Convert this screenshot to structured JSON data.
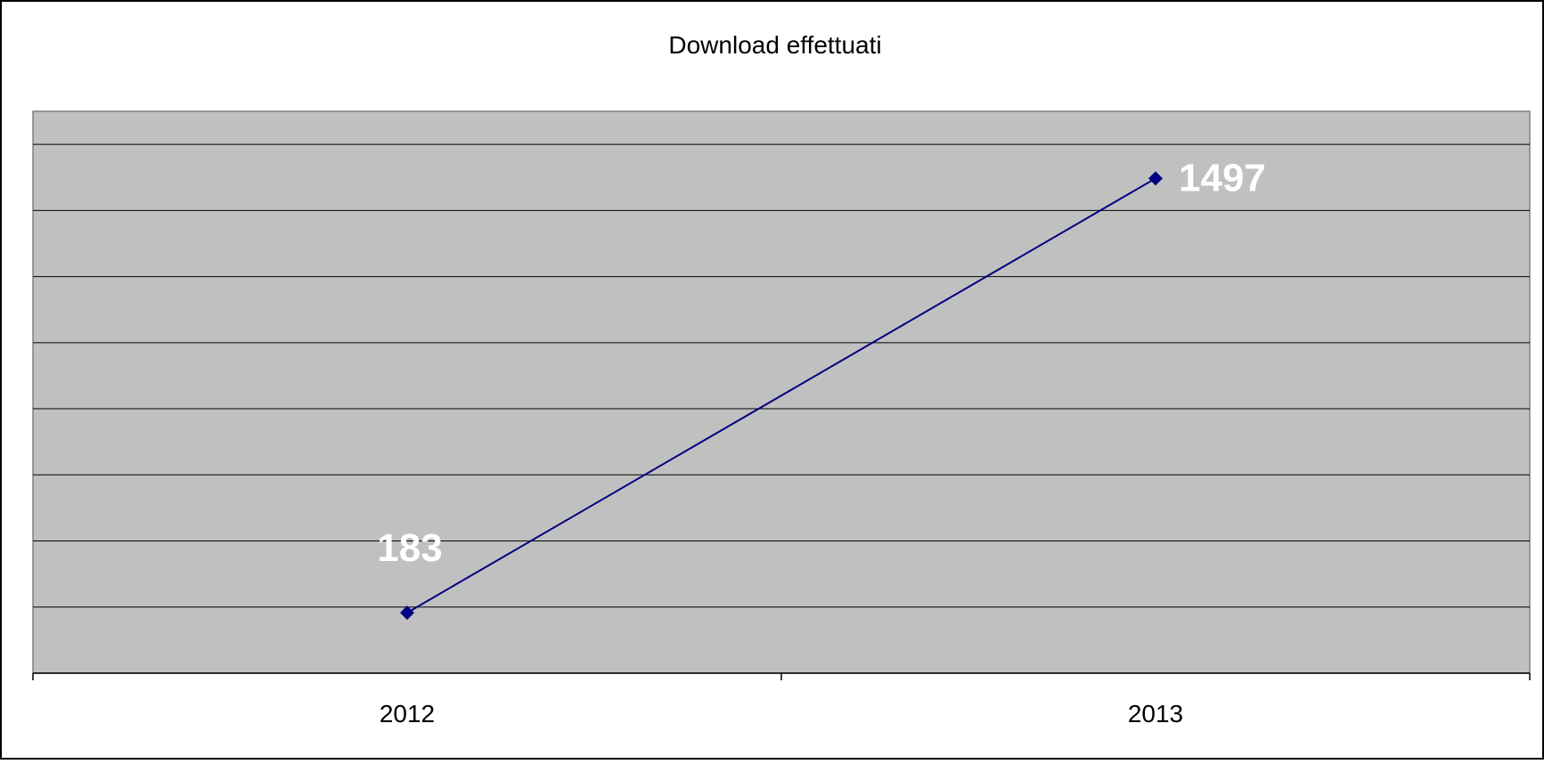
{
  "chart_data": {
    "type": "line",
    "title": "Download effettuati",
    "categories": [
      "2012",
      "2013"
    ],
    "series": [
      {
        "values": [
          183,
          1497
        ],
        "data_labels": [
          "183",
          "1497"
        ]
      }
    ],
    "ylim": [
      0,
      1700
    ],
    "y_grid_step": 200,
    "grid": true,
    "legend": "none",
    "colors": {
      "plot_background": "#c0c0c0",
      "series_line": "#000080",
      "data_label": "#ffffff",
      "gridline": "#000000"
    }
  }
}
